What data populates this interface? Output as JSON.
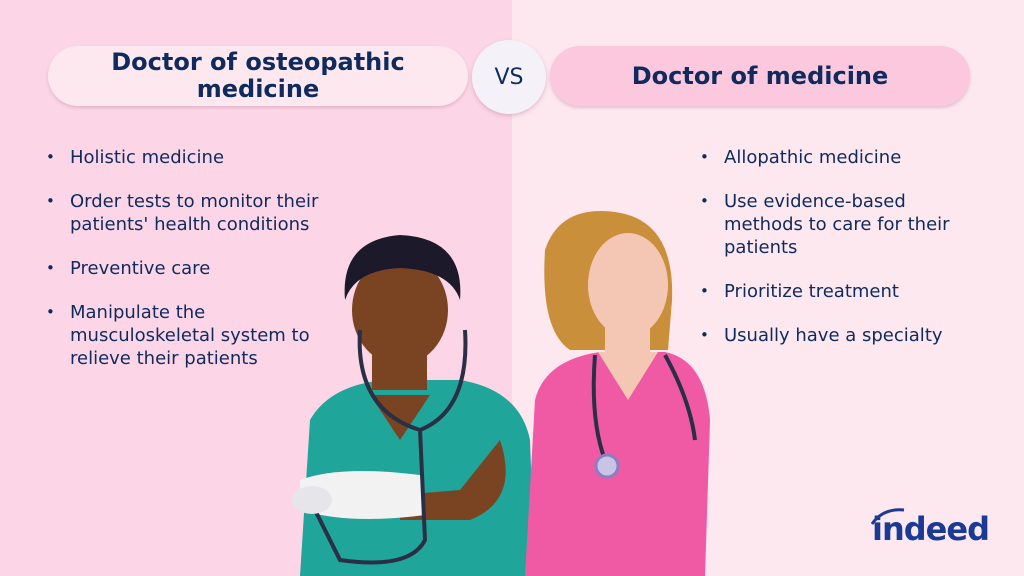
{
  "left": {
    "title": "Doctor of osteopathic medicine",
    "items": [
      "Holistic medicine",
      "Order tests to monitor their patients' health conditions",
      "Preventive care",
      "Manipulate the musculoskeletal system to relieve their patients"
    ]
  },
  "vs_label": "VS",
  "right": {
    "title": "Doctor of medicine",
    "items": [
      "Allopathic medicine",
      "Use evidence-based methods to care for their patients",
      "Prioritize treatment",
      "Usually have a specialty"
    ]
  },
  "logo": "indeed",
  "colors": {
    "navy": "#0f2a5c",
    "left_bg": "#fcd6e6",
    "right_bg": "#fde8ef",
    "teal_scrubs": "#1fa59a",
    "pink_scrubs": "#f05aa4",
    "logo_blue": "#1b3a94"
  }
}
